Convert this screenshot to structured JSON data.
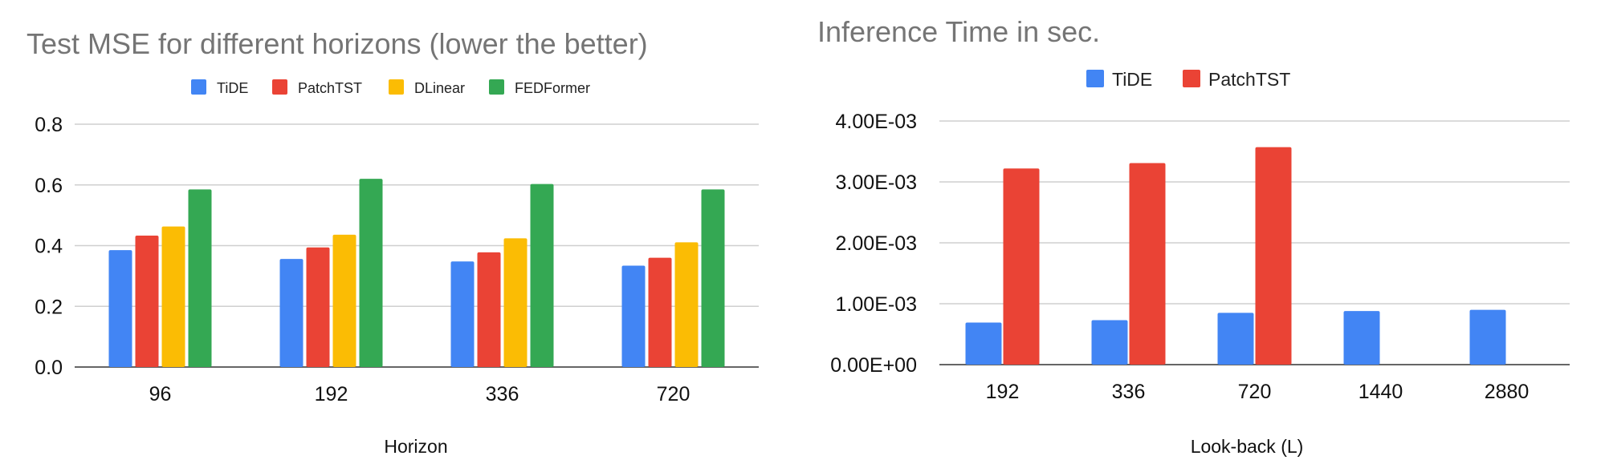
{
  "chart_data": [
    {
      "type": "bar",
      "title": "Test MSE for different horizons (lower the better)",
      "xlabel": "Horizon",
      "ylabel": "",
      "categories": [
        "96",
        "192",
        "336",
        "720"
      ],
      "series": [
        {
          "name": "TiDE",
          "color": "#4285F4",
          "values": [
            0.385,
            0.356,
            0.348,
            0.334
          ]
        },
        {
          "name": "PatchTST",
          "color": "#EA4335",
          "values": [
            0.433,
            0.394,
            0.378,
            0.36
          ]
        },
        {
          "name": "DLinear",
          "color": "#FBBC04",
          "values": [
            0.463,
            0.436,
            0.424,
            0.411
          ]
        },
        {
          "name": "FEDFormer",
          "color": "#34A853",
          "values": [
            0.585,
            0.62,
            0.603,
            0.585
          ]
        }
      ],
      "ylim": [
        0,
        0.8
      ],
      "yticks": [
        "0.0",
        "0.2",
        "0.4",
        "0.6",
        "0.8"
      ],
      "grid": true,
      "legend": "top"
    },
    {
      "type": "bar",
      "title": "Inference Time in sec.",
      "xlabel": "Look-back (L)",
      "ylabel": "",
      "categories": [
        "192",
        "336",
        "720",
        "1440",
        "2880"
      ],
      "series": [
        {
          "name": "TiDE",
          "color": "#4285F4",
          "values": [
            0.00069,
            0.00073,
            0.00085,
            0.00088,
            0.0009
          ]
        },
        {
          "name": "PatchTST",
          "color": "#EA4335",
          "values": [
            0.00322,
            0.00331,
            0.00357,
            null,
            null
          ]
        }
      ],
      "ylim": [
        0,
        0.004
      ],
      "yticks": [
        "0.00E+00",
        "1.00E-03",
        "2.00E-03",
        "3.00E-03",
        "4.00E-03"
      ],
      "grid": true,
      "legend": "top"
    }
  ]
}
